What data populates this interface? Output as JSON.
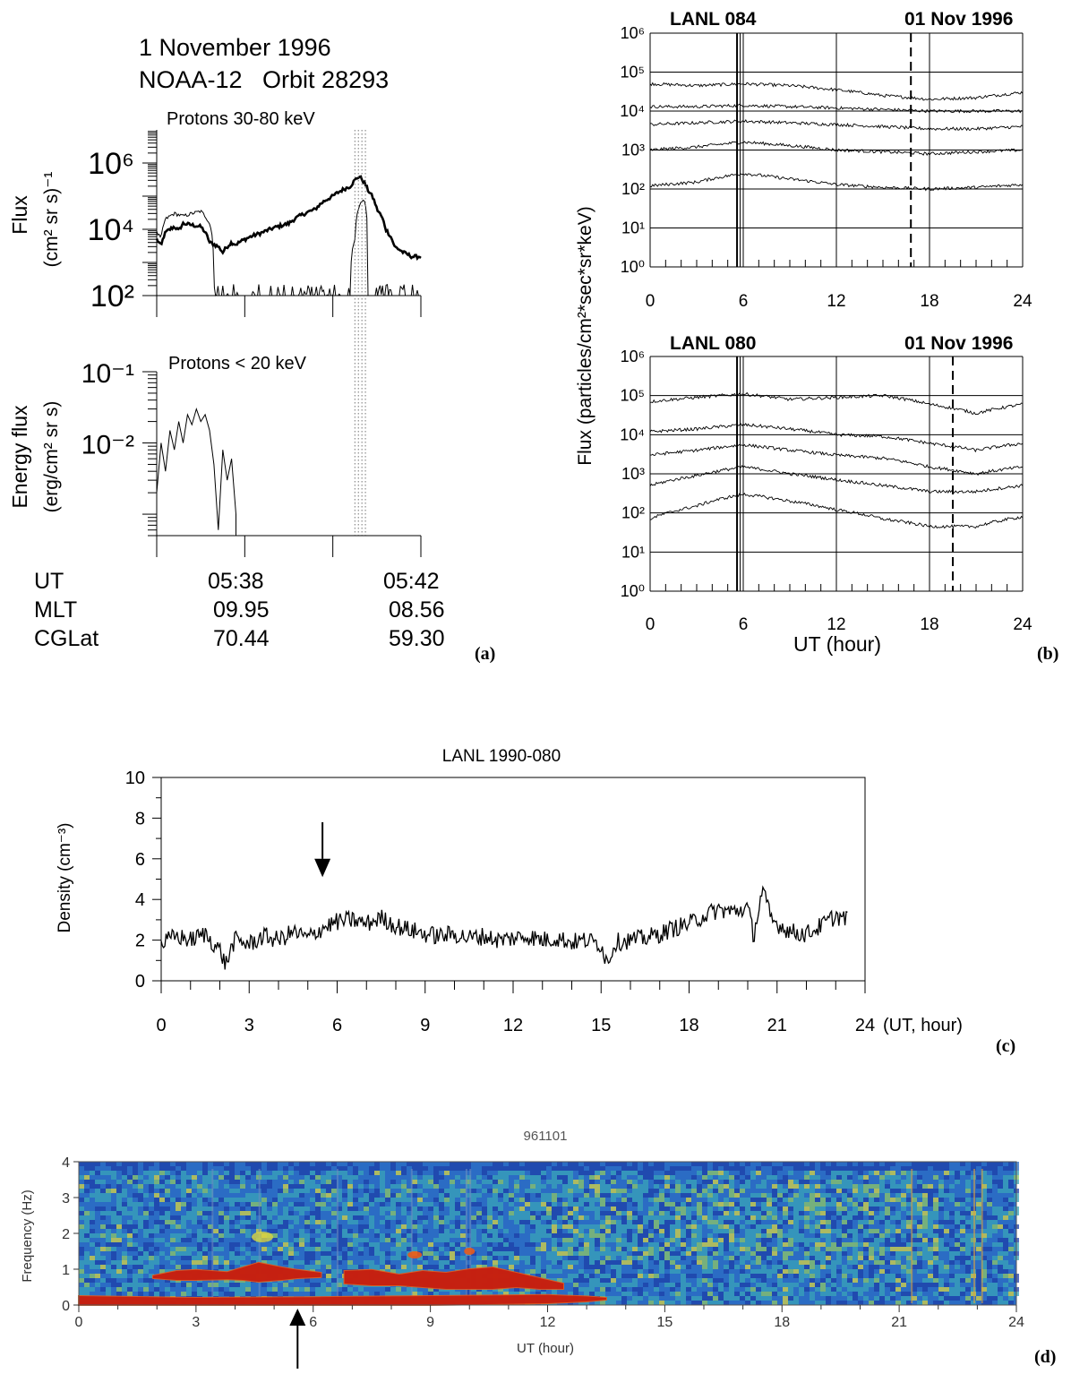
{
  "chart_data": [
    {
      "panel": "(a)",
      "type": "line",
      "title_line1": "1 November 1996",
      "title_line2": "NOAA-12   Orbit 28293",
      "subplots": [
        {
          "title": "Protons 30-80 keV",
          "ylabel_line1": "Flux",
          "ylabel_line2": "(cm² sr s)⁻¹",
          "ylim": [
            100,
            10000000
          ],
          "log_y": true,
          "ytick_labels": [
            {
              "value": 1000000,
              "label": "10⁶"
            },
            {
              "value": 10000,
              "label": "10⁴"
            },
            {
              "value": 100,
              "label": "10²"
            }
          ],
          "series": [
            {
              "style": "thick",
              "x": [
                0,
                0.05,
                0.1,
                0.2,
                0.25,
                0.3,
                0.5,
                0.6,
                0.7,
                0.75,
                0.8,
                0.85,
                0.9,
                1.0,
                1.2,
                1.5,
                1.8,
                2.0,
                2.2,
                2.3,
                2.4,
                2.5,
                2.6,
                2.7,
                2.8,
                2.9,
                3.0
              ],
              "y": [
                5000,
                3000,
                8000,
                12000,
                9000,
                15000,
                12000,
                4000,
                3000,
                2000,
                3000,
                4000,
                3500,
                5000,
                8000,
                15000,
                40000,
                100000,
                200000,
                400000,
                150000,
                40000,
                10000,
                3000,
                2000,
                1500,
                1500
              ]
            },
            {
              "style": "thin",
              "x": [
                0,
                0.05,
                0.1,
                0.2,
                0.3,
                0.5,
                0.6,
                0.65,
                0.7,
                0.8,
                0.85,
                0.9,
                1.0,
                1.2,
                1.4,
                1.6,
                1.8,
                1.9,
                2.0,
                2.2,
                2.25,
                2.3,
                2.35,
                2.4,
                2.6,
                2.8,
                3.0
              ],
              "y": [
                8000,
                5000,
                20000,
                30000,
                25000,
                35000,
                15000,
                200,
                100,
                150,
                100,
                200,
                100,
                200,
                100,
                300,
                100,
                200,
                100,
                100,
                5000,
                50000,
                80000,
                100,
                200,
                100,
                200
              ]
            }
          ]
        },
        {
          "title": "Protons < 20 keV",
          "ylabel_line1": "Energy flux",
          "ylabel_line2": "(erg/cm² sr s)",
          "ylim": [
            0.0005,
            0.1
          ],
          "log_y": true,
          "ytick_labels": [
            {
              "value": 0.1,
              "label": "10⁻¹"
            },
            {
              "value": 0.01,
              "label": "10⁻²"
            }
          ],
          "series": [
            {
              "style": "thin",
              "x": [
                0,
                0.05,
                0.1,
                0.15,
                0.2,
                0.25,
                0.3,
                0.35,
                0.4,
                0.45,
                0.5,
                0.55,
                0.6,
                0.65,
                0.7,
                0.75,
                0.8,
                0.85,
                0.9
              ],
              "y": [
                0.002,
                0.01,
                0.004,
                0.015,
                0.008,
                0.02,
                0.01,
                0.025,
                0.018,
                0.03,
                0.02,
                0.025,
                0.015,
                0.005,
                0.0006,
                0.008,
                0.003,
                0.006,
                0.001
              ]
            }
          ]
        }
      ],
      "footer_rows": [
        {
          "label": "UT",
          "v1": "05:38",
          "v2": "05:42"
        },
        {
          "label": "MLT",
          "v1": "09.95",
          "v2": "08.56"
        },
        {
          "label": "CGLat",
          "v1": "70.44",
          "v2": "59.30"
        }
      ],
      "panel_label": "(a)"
    },
    {
      "panel": "(b)",
      "type": "line",
      "ylabel": "Flux (particles/cm²*sec*sr*keV)",
      "xlabel": "UT (hour)",
      "xlim": [
        0,
        24
      ],
      "xticks": [
        0,
        6,
        12,
        18,
        24
      ],
      "ylim": [
        1,
        1000000
      ],
      "log_y": true,
      "ytick_labels": [
        {
          "value": 1000000,
          "label": "10⁶"
        },
        {
          "value": 100000,
          "label": "10⁵"
        },
        {
          "value": 10000,
          "label": "10⁴"
        },
        {
          "value": 1000,
          "label": "10³"
        },
        {
          "value": 100,
          "label": "10²"
        },
        {
          "value": 10,
          "label": "10¹"
        },
        {
          "value": 1,
          "label": "10⁰"
        }
      ],
      "subplots": [
        {
          "satellite": "LANL 084",
          "date": "01 Nov 1996",
          "vertical_lines_solid": [
            5.6,
            5.8,
            6,
            12,
            18
          ],
          "vertical_line_dashed": 16.8,
          "series": [
            {
              "x": [
                0,
                3,
                6,
                9,
                12,
                15,
                18,
                21,
                24
              ],
              "y": [
                50000,
                45000,
                50000,
                45000,
                35000,
                25000,
                20000,
                22000,
                30000
              ]
            },
            {
              "x": [
                0,
                3,
                6,
                9,
                12,
                15,
                18,
                21,
                24
              ],
              "y": [
                13000,
                13000,
                14000,
                13000,
                12000,
                11000,
                10000,
                10000,
                10000
              ]
            },
            {
              "x": [
                0,
                3,
                6,
                9,
                12,
                15,
                18,
                21,
                24
              ],
              "y": [
                4500,
                5000,
                5500,
                5000,
                4500,
                4000,
                3500,
                3500,
                4000
              ]
            },
            {
              "x": [
                0,
                3,
                6,
                9,
                12,
                15,
                18,
                21,
                24
              ],
              "y": [
                1000,
                1200,
                1600,
                1300,
                1000,
                900,
                800,
                900,
                1000
              ]
            },
            {
              "x": [
                0,
                3,
                6,
                9,
                12,
                15,
                18,
                21,
                24
              ],
              "y": [
                120,
                150,
                250,
                180,
                130,
                110,
                100,
                110,
                130
              ]
            }
          ]
        },
        {
          "satellite": "LANL 080",
          "date": "01 Nov 1996",
          "vertical_lines_solid": [
            5.6,
            5.8,
            6,
            12,
            18
          ],
          "vertical_line_dashed": 19.5,
          "series": [
            {
              "x": [
                0,
                3,
                6,
                9,
                12,
                15,
                18,
                21,
                24
              ],
              "y": [
                70000,
                90000,
                110000,
                80000,
                90000,
                100000,
                60000,
                35000,
                60000
              ]
            },
            {
              "x": [
                0,
                3,
                6,
                9,
                12,
                15,
                18,
                21,
                24
              ],
              "y": [
                12000,
                14000,
                18000,
                14000,
                10000,
                9000,
                6000,
                4000,
                6000
              ]
            },
            {
              "x": [
                0,
                3,
                6,
                9,
                12,
                15,
                18,
                21,
                24
              ],
              "y": [
                3000,
                4000,
                5500,
                4000,
                3000,
                2500,
                1500,
                1000,
                1500
              ]
            },
            {
              "x": [
                0,
                3,
                6,
                9,
                12,
                15,
                18,
                21,
                24
              ],
              "y": [
                500,
                900,
                1500,
                1000,
                700,
                500,
                350,
                350,
                500
              ]
            },
            {
              "x": [
                0,
                3,
                6,
                9,
                12,
                15,
                18,
                21,
                24
              ],
              "y": [
                70,
                150,
                300,
                200,
                120,
                70,
                45,
                45,
                80
              ]
            }
          ]
        }
      ],
      "panel_label": "(b)"
    },
    {
      "panel": "(c)",
      "type": "line",
      "title": "LANL 1990-080",
      "ylabel": "Density (cm⁻³)",
      "xlabel": "(UT, hour)",
      "xlim": [
        0,
        24
      ],
      "xticks": [
        0,
        3,
        6,
        9,
        12,
        15,
        18,
        21,
        24
      ],
      "ylim": [
        0,
        10
      ],
      "yticks": [
        0,
        2,
        4,
        6,
        8,
        10
      ],
      "arrow_x": 5.5,
      "series": [
        {
          "x": [
            0,
            0.5,
            1,
            1.5,
            2,
            2.2,
            2.5,
            3,
            3.5,
            4,
            4.5,
            5,
            5.5,
            6,
            6.5,
            7,
            7.5,
            8,
            8.5,
            9,
            9.5,
            10,
            10.5,
            11,
            11.5,
            12,
            12.5,
            13,
            13.5,
            14,
            14.5,
            15,
            15.2,
            15.5,
            16,
            16.5,
            17,
            17.5,
            18,
            18.5,
            19,
            19.5,
            20,
            20.2,
            20.5,
            20.8,
            21,
            21.5,
            22,
            22.5,
            23,
            23.4
          ],
          "y": [
            1.8,
            2.2,
            2.0,
            2.3,
            1.5,
            0.8,
            2.0,
            1.8,
            2.2,
            2.0,
            2.4,
            2.1,
            2.6,
            2.9,
            3.0,
            2.8,
            3.1,
            2.7,
            2.5,
            2.3,
            2.2,
            2.3,
            2.1,
            2.2,
            2.0,
            2.1,
            2.2,
            2.0,
            2.1,
            1.9,
            2.0,
            1.8,
            0.9,
            1.9,
            2.0,
            2.1,
            2.3,
            2.6,
            2.8,
            3.2,
            3.5,
            3.4,
            3.6,
            2.2,
            4.5,
            3.0,
            2.8,
            2.4,
            2.3,
            2.7,
            3.2,
            3.0
          ]
        }
      ],
      "panel_label": "(c)"
    },
    {
      "panel": "(d)",
      "type": "heatmap",
      "title": "961101",
      "ylabel": "Frequency (Hz)",
      "xlabel": "UT (hour)",
      "xlim": [
        0,
        24
      ],
      "xticks": [
        0,
        3,
        6,
        9,
        12,
        15,
        18,
        21,
        24
      ],
      "ylim": [
        0,
        4
      ],
      "yticks": [
        0,
        1,
        2,
        3,
        4
      ],
      "arrow_x": 5.6,
      "colors": {
        "background": "#2b6cc4",
        "noise_low": "#1d3fa8",
        "noise_mid": "#39a3b8",
        "noise_high": "#8fc766",
        "band": "#c41d10",
        "band_edge": "#e85a1a",
        "yellow": "#d9d440"
      },
      "bands": [
        {
          "x": [
            1.9,
            2.5,
            3.0,
            3.8,
            4.2,
            4.6,
            5.2,
            5.6,
            6.2
          ],
          "y_lo": [
            0.75,
            0.7,
            0.7,
            0.72,
            0.7,
            0.65,
            0.7,
            0.75,
            0.78
          ],
          "y_hi": [
            0.82,
            0.95,
            0.98,
            0.92,
            1.05,
            1.18,
            1.05,
            0.98,
            0.9
          ]
        },
        {
          "x": [
            6.8,
            7.5,
            8.2,
            8.8,
            9.4,
            10.0,
            10.6,
            11.2,
            11.8,
            12.4
          ],
          "y_lo": [
            0.6,
            0.55,
            0.55,
            0.5,
            0.45,
            0.45,
            0.45,
            0.5,
            0.45,
            0.45
          ],
          "y_hi": [
            0.95,
            0.98,
            0.85,
            0.95,
            0.9,
            1.0,
            1.05,
            0.9,
            0.75,
            0.6
          ]
        },
        {
          "x": [
            0.0,
            3.0,
            6.0,
            9.0,
            12.0,
            13.0,
            13.5
          ],
          "y_lo": [
            0.0,
            0.0,
            0.0,
            0.0,
            0.05,
            0.1,
            0.15
          ],
          "y_hi": [
            0.25,
            0.2,
            0.22,
            0.25,
            0.28,
            0.24,
            0.2
          ]
        }
      ],
      "panel_label": "(d)"
    }
  ]
}
